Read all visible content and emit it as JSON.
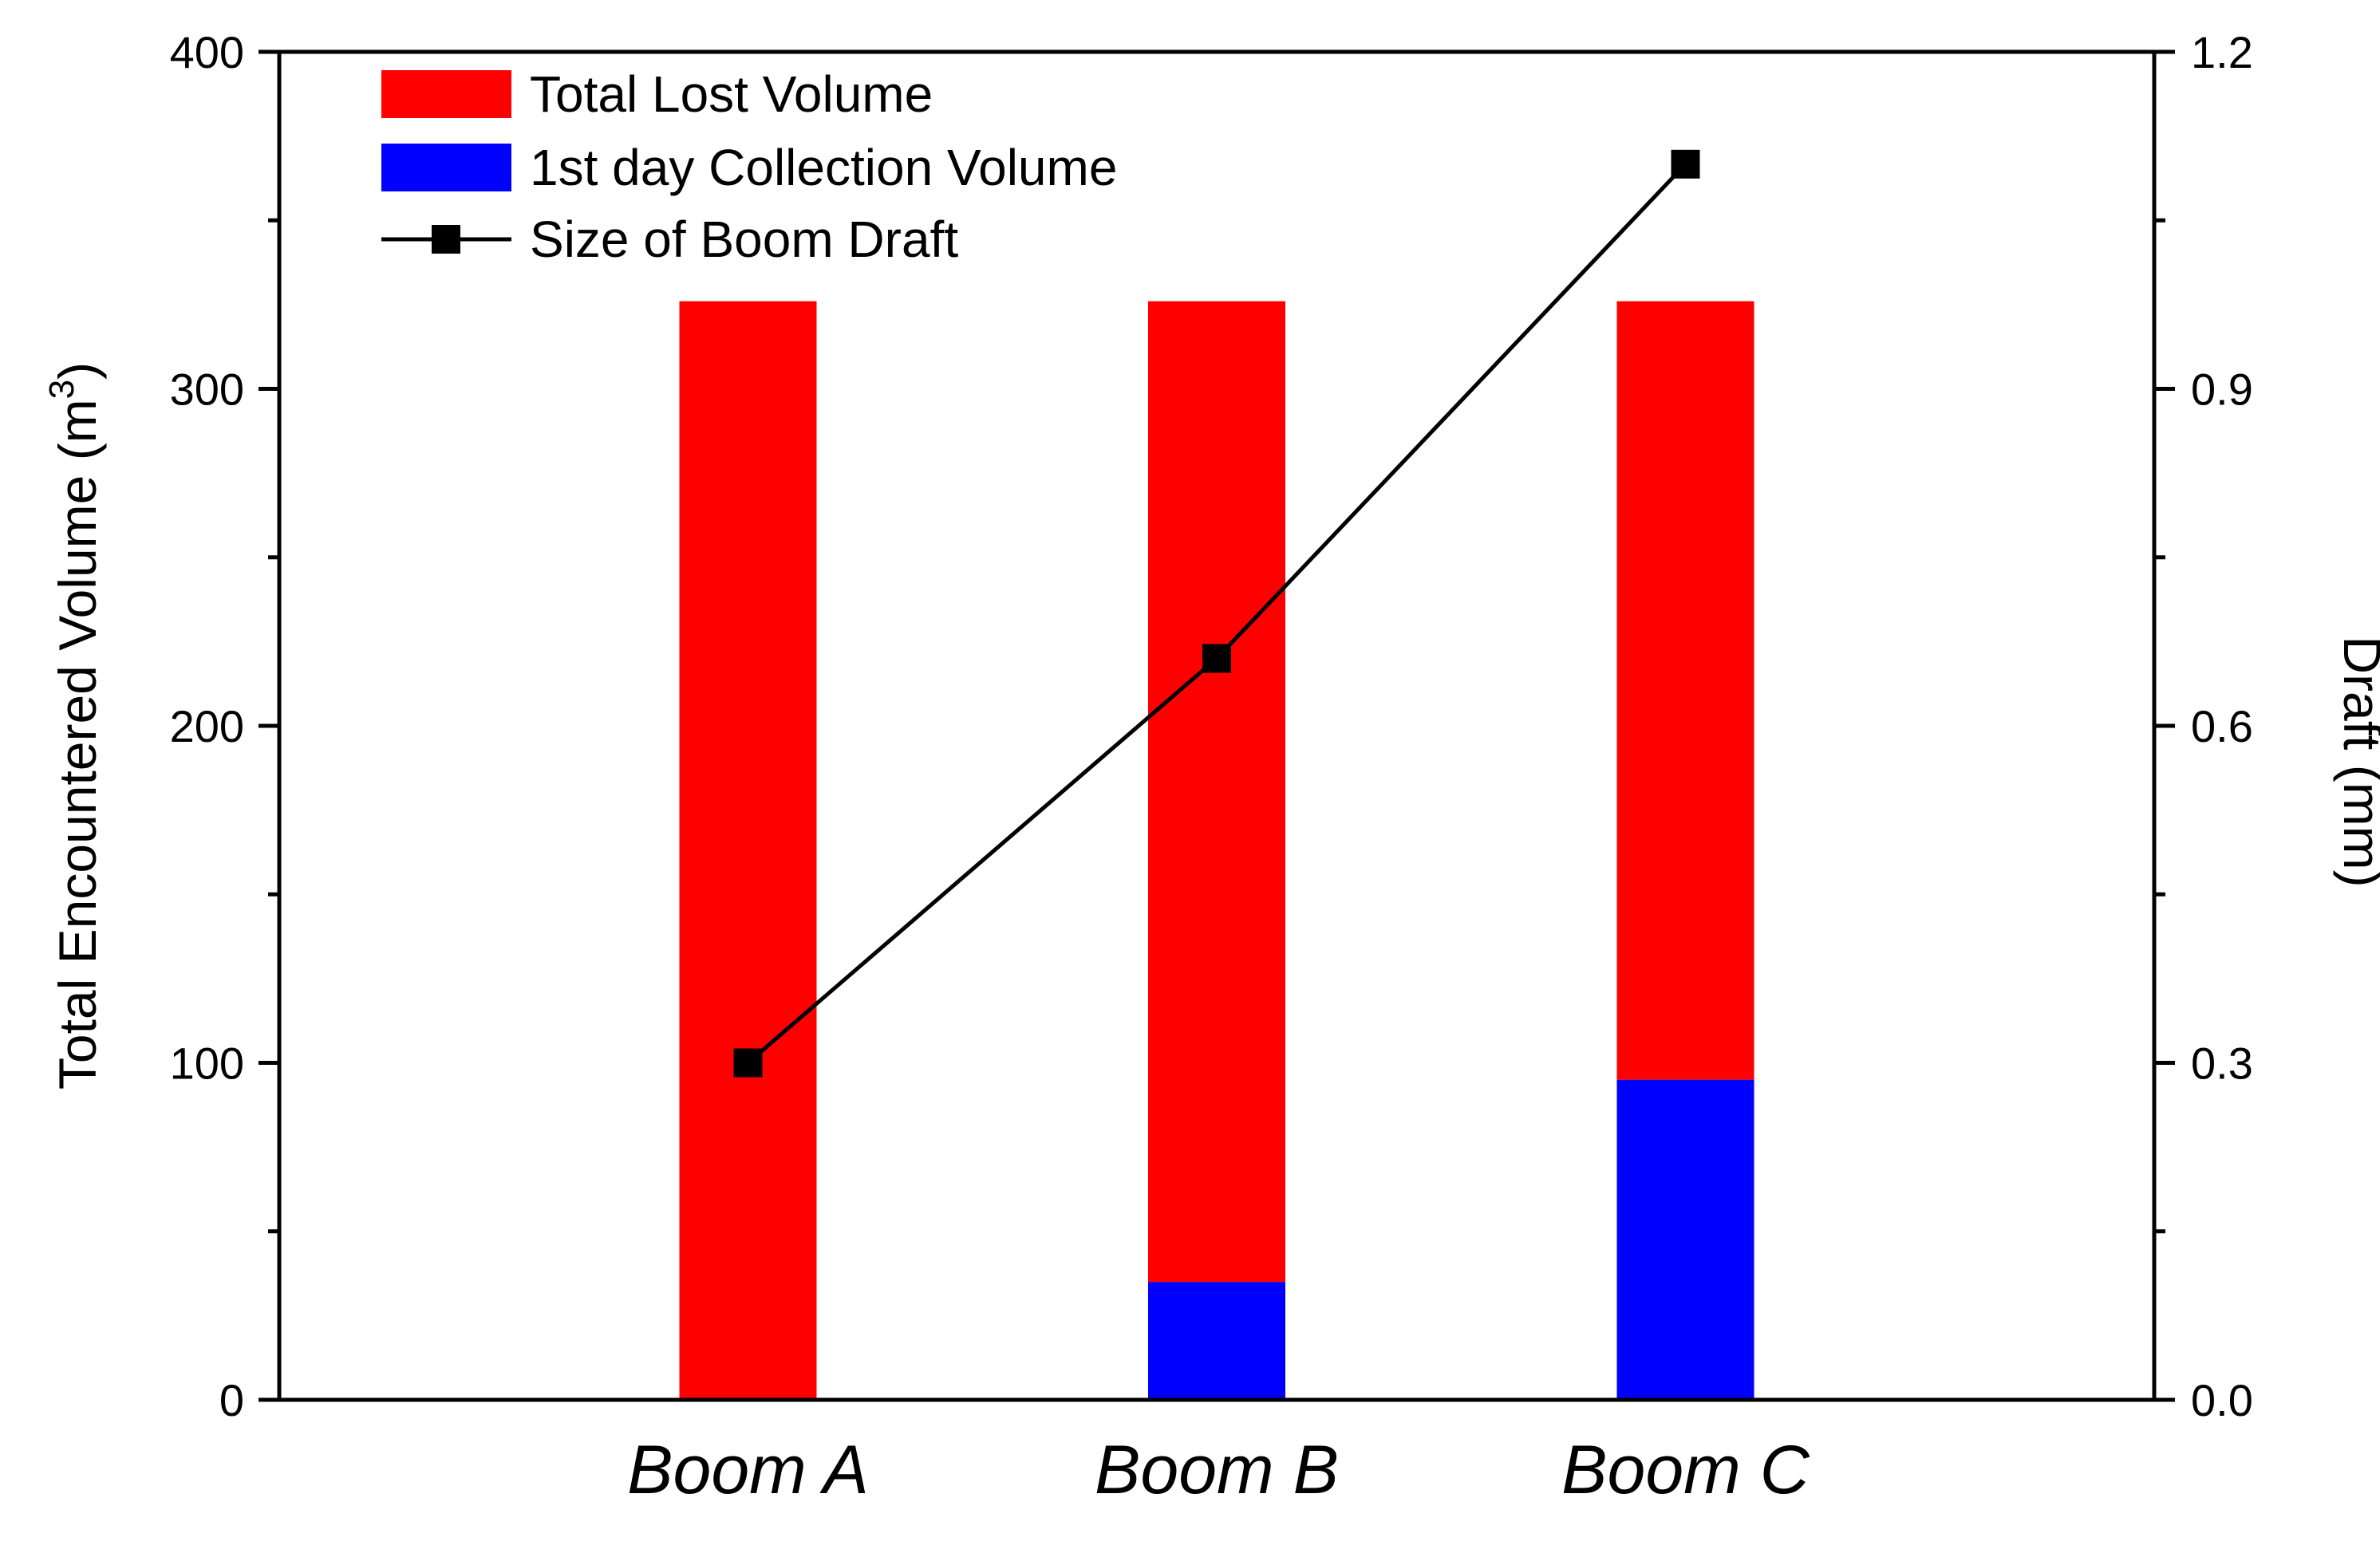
{
  "chart_data": {
    "type": "bar",
    "categories": [
      "Boom A",
      "Boom B",
      "Boom C"
    ],
    "stacked": true,
    "series": [
      {
        "name": "1st day Collection Volume",
        "kind": "bar",
        "axis": "left",
        "color": "#0000ff",
        "values": [
          0,
          35,
          95
        ]
      },
      {
        "name": "Total Lost Volume",
        "kind": "bar",
        "axis": "left",
        "color": "#ff0000",
        "values": [
          326,
          291,
          231
        ]
      },
      {
        "name": "Size of Boom Draft",
        "kind": "line",
        "axis": "right",
        "color": "#000000",
        "marker": "square",
        "values": [
          0.3,
          0.66,
          1.1
        ]
      }
    ],
    "ylabel": "Total Encountered Volume (m",
    "ylabel_superscript": "3",
    "ylabel_suffix": ")",
    "y2label": "Draft (mm)",
    "ylim": [
      0,
      400
    ],
    "y2lim": [
      0.0,
      1.2
    ],
    "yticks": [
      "0",
      "100",
      "200",
      "300",
      "400"
    ],
    "y2ticks": [
      "0.0",
      "0.3",
      "0.6",
      "0.9",
      "1.2"
    ],
    "grid": false,
    "legend_position": "top-left",
    "legend": [
      {
        "label": "Total Lost Volume",
        "swatch": "bar",
        "color": "#ff0000"
      },
      {
        "label": "1st day Collection Volume",
        "swatch": "bar",
        "color": "#0000ff"
      },
      {
        "label": "Size of Boom Draft",
        "swatch": "line-marker",
        "color": "#000000"
      }
    ]
  }
}
